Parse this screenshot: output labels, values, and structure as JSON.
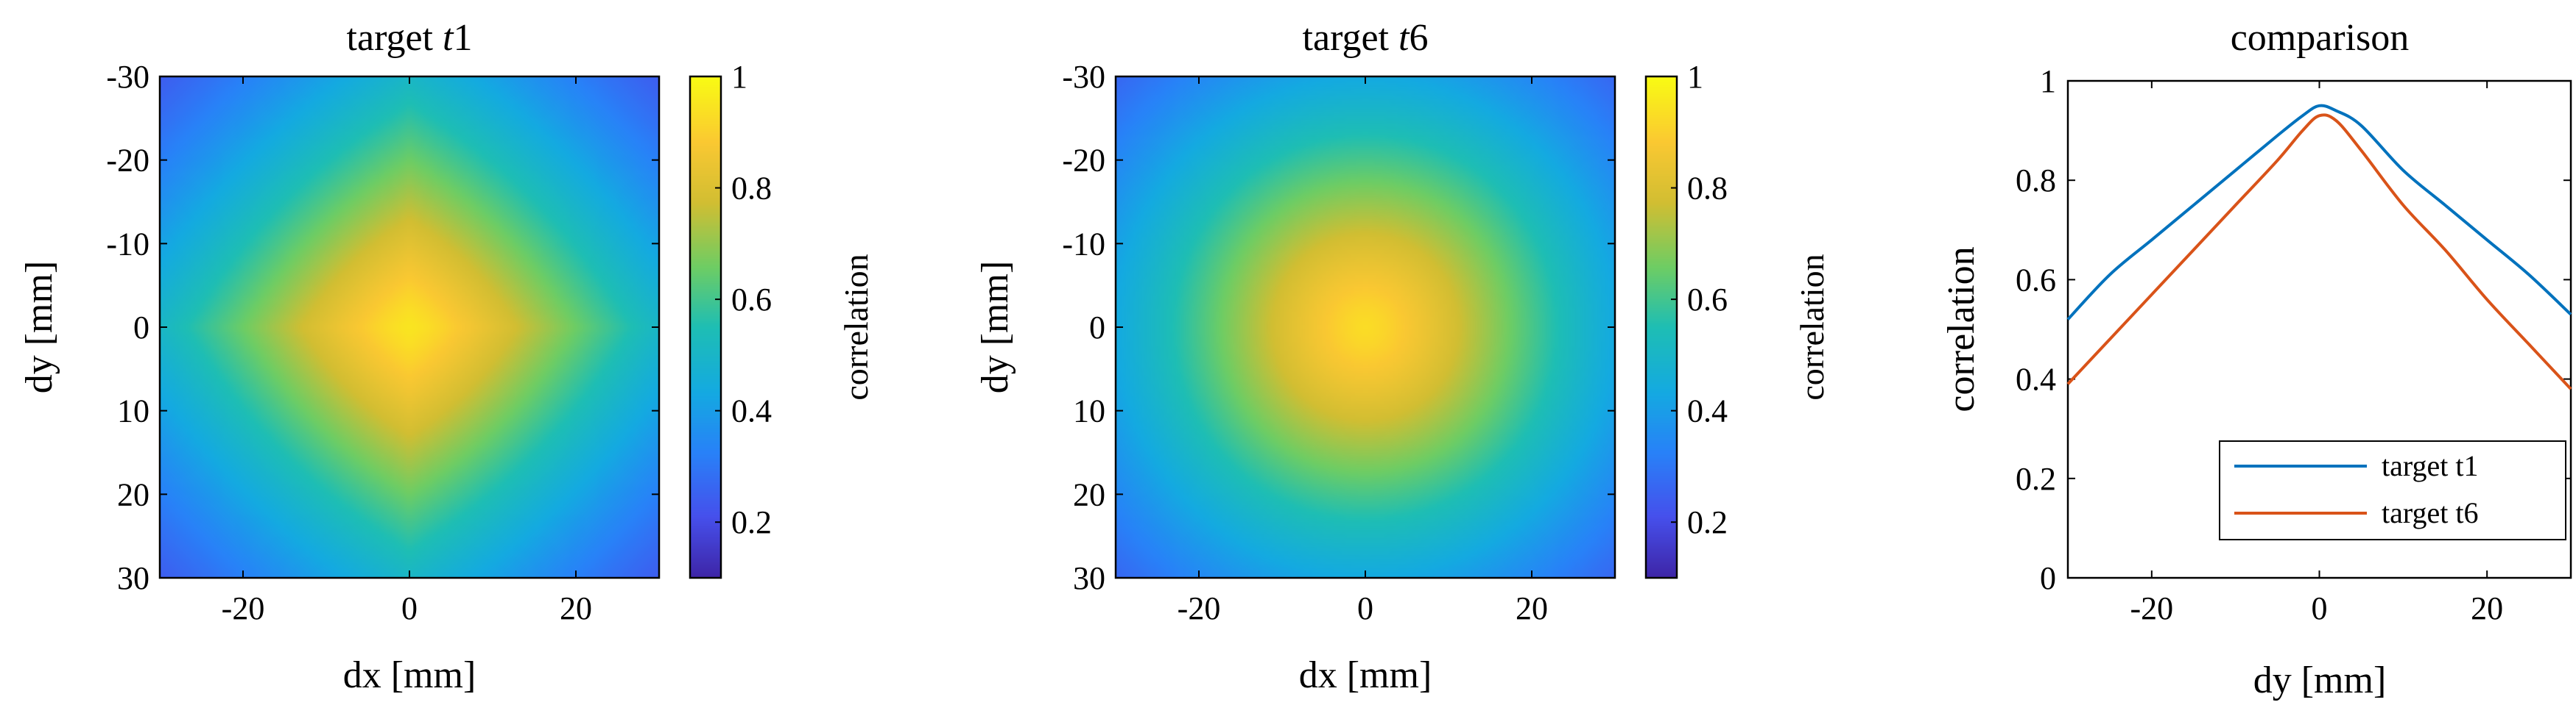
{
  "chart_data": [
    {
      "type": "heatmap",
      "title": "target t1",
      "xlabel": "dx [mm]",
      "ylabel": "dy [mm]",
      "xlim": [
        -30,
        30
      ],
      "ylim": [
        -30,
        30
      ],
      "y_reversed": true,
      "xticks": [
        -20,
        0,
        20
      ],
      "yticks": [
        -30,
        -20,
        -10,
        0,
        10,
        20,
        30
      ],
      "colorbar": {
        "label": "correlation",
        "ticks": [
          0.2,
          0.4,
          0.6,
          0.8,
          1
        ],
        "clim": [
          0.1,
          1.0
        ],
        "colormap": "parula"
      },
      "model": {
        "shape": "diamond",
        "peak": 0.95,
        "description": "diamond-shaped decay"
      },
      "profile_dy": [
        [
          -30,
          0.52
        ],
        [
          -20,
          0.68
        ],
        [
          -10,
          0.82
        ],
        [
          0,
          0.95
        ],
        [
          10,
          0.82
        ],
        [
          20,
          0.68
        ],
        [
          30,
          0.53
        ]
      ]
    },
    {
      "type": "heatmap",
      "title": "target t6",
      "xlabel": "dx [mm]",
      "ylabel": "dy [mm]",
      "xlim": [
        -30,
        30
      ],
      "ylim": [
        -30,
        30
      ],
      "y_reversed": true,
      "xticks": [
        -20,
        0,
        20
      ],
      "yticks": [
        -30,
        -20,
        -10,
        0,
        10,
        20,
        30
      ],
      "colorbar": {
        "label": "correlation",
        "ticks": [
          0.2,
          0.4,
          0.6,
          0.8,
          1
        ],
        "clim": [
          0.1,
          1.0
        ],
        "colormap": "parula"
      },
      "model": {
        "shape": "circular",
        "peak": 0.93,
        "description": "radially symmetric decay"
      },
      "profile_dy": [
        [
          -30,
          0.39
        ],
        [
          -20,
          0.57
        ],
        [
          -10,
          0.75
        ],
        [
          0,
          0.93
        ],
        [
          10,
          0.75
        ],
        [
          20,
          0.56
        ],
        [
          30,
          0.38
        ]
      ]
    },
    {
      "type": "line",
      "title": "comparison",
      "xlabel": "dy [mm]",
      "ylabel": "correlation",
      "xlim": [
        -30,
        30
      ],
      "ylim": [
        0,
        1
      ],
      "xticks": [
        -20,
        0,
        20
      ],
      "yticks": [
        0,
        0.2,
        0.4,
        0.6,
        0.8,
        1
      ],
      "legend_position": "bottom-right",
      "series": [
        {
          "name": "target t1",
          "color": "#0072BD",
          "x": [
            -30,
            -25,
            -20,
            -15,
            -10,
            -5,
            -2,
            0,
            2,
            5,
            10,
            15,
            20,
            25,
            30
          ],
          "y": [
            0.52,
            0.61,
            0.68,
            0.75,
            0.82,
            0.89,
            0.93,
            0.95,
            0.94,
            0.91,
            0.82,
            0.75,
            0.68,
            0.61,
            0.53
          ]
        },
        {
          "name": "target t6",
          "color": "#D95319",
          "x": [
            -30,
            -25,
            -20,
            -15,
            -10,
            -5,
            -2,
            0,
            2,
            5,
            10,
            15,
            20,
            25,
            30
          ],
          "y": [
            0.39,
            0.48,
            0.57,
            0.66,
            0.75,
            0.84,
            0.9,
            0.93,
            0.92,
            0.86,
            0.75,
            0.66,
            0.56,
            0.47,
            0.38
          ]
        }
      ]
    }
  ]
}
